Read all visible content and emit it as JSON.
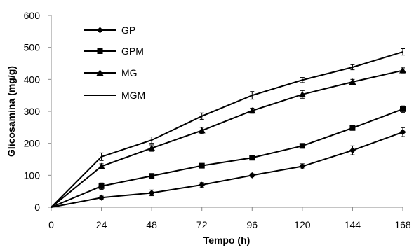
{
  "chart_data": {
    "type": "line",
    "xlabel": "Tempo (h)",
    "ylabel": "Glicosamina (mg/g)",
    "x": [
      0,
      24,
      48,
      72,
      96,
      120,
      144,
      168
    ],
    "xticks": [
      "0",
      "24",
      "48",
      "72",
      "96",
      "120",
      "144",
      "168"
    ],
    "yticks": [
      "0",
      "100",
      "200",
      "300",
      "400",
      "500",
      "600"
    ],
    "xlim": [
      0,
      168
    ],
    "ylim": [
      0,
      600
    ],
    "grid": false,
    "legend_position": "top-left",
    "series": [
      {
        "name": "GP",
        "marker": "diamond",
        "values": [
          0,
          30,
          45,
          70,
          100,
          128,
          178,
          235
        ],
        "errors": [
          0,
          5,
          9,
          7,
          5,
          8,
          14,
          14
        ]
      },
      {
        "name": "GPM",
        "marker": "square",
        "values": [
          0,
          66,
          98,
          130,
          155,
          192,
          248,
          307
        ],
        "errors": [
          0,
          10,
          6,
          5,
          5,
          6,
          6,
          10
        ]
      },
      {
        "name": "MG",
        "marker": "triangle",
        "values": [
          0,
          128,
          185,
          240,
          302,
          353,
          392,
          428
        ],
        "errors": [
          0,
          8,
          10,
          10,
          8,
          12,
          8,
          8
        ]
      },
      {
        "name": "MGM",
        "marker": "none",
        "values": [
          0,
          158,
          210,
          285,
          350,
          398,
          438,
          486
        ],
        "errors": [
          0,
          12,
          10,
          10,
          12,
          8,
          8,
          10
        ]
      }
    ]
  }
}
